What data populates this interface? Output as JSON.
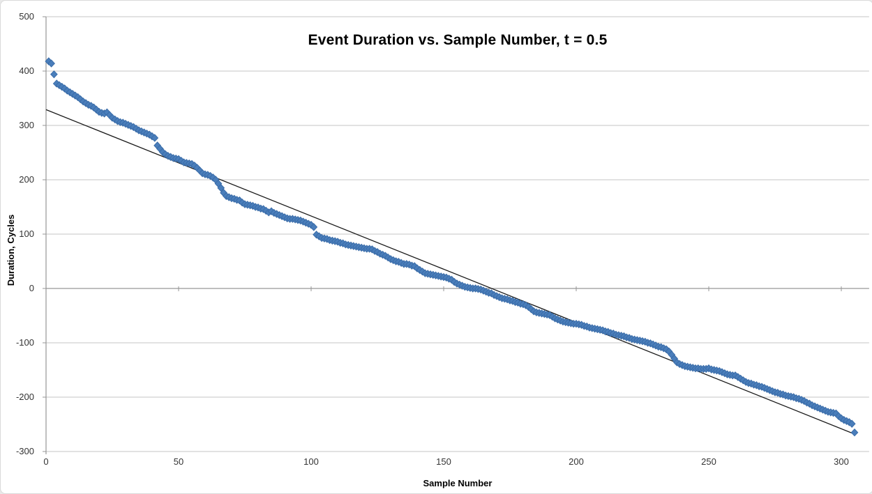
{
  "chart": {
    "title": "Event Duration vs. Sample Number, t = 0.5",
    "x_axis_label": "Sample Number",
    "y_axis_label": "Duration, Cycles"
  },
  "colors": {
    "background": "#ffffff",
    "border": "#d9d9d9",
    "gridline": "#c6c6c6",
    "axis": "#969696",
    "trendline": "#1a1a1a",
    "marker_fill": "#4a7ebb",
    "marker_stroke": "#3a6ca8",
    "text": "#333333"
  },
  "chart_data": {
    "type": "scatter",
    "title": "Event Duration vs. Sample Number, t = 0.5",
    "xlabel": "Sample Number",
    "ylabel": "Duration, Cycles",
    "xlim": [
      0,
      310.5
    ],
    "ylim": [
      -300,
      500
    ],
    "x_ticks": [
      0,
      50,
      100,
      150,
      200,
      250,
      300
    ],
    "y_ticks": [
      -300,
      -200,
      -100,
      0,
      100,
      200,
      300,
      400,
      500
    ],
    "grid": true,
    "legend_position": "none",
    "marker_shape": "diamond",
    "trendline": {
      "type": "linear",
      "x1": 0,
      "y1": 329,
      "x2": 304,
      "y2": -266
    },
    "points": [
      [
        1,
        418
      ],
      [
        2,
        414
      ],
      [
        3,
        394
      ],
      [
        4,
        377
      ],
      [
        5,
        374
      ],
      [
        6,
        371
      ],
      [
        7,
        368
      ],
      [
        8,
        364
      ],
      [
        9,
        361
      ],
      [
        10,
        358
      ],
      [
        11,
        355
      ],
      [
        12,
        352
      ],
      [
        13,
        348
      ],
      [
        14,
        344
      ],
      [
        15,
        341
      ],
      [
        16,
        338
      ],
      [
        17,
        336
      ],
      [
        18,
        333
      ],
      [
        19,
        329
      ],
      [
        20,
        325
      ],
      [
        21,
        323
      ],
      [
        22,
        322
      ],
      [
        23,
        324
      ],
      [
        24,
        319
      ],
      [
        25,
        314
      ],
      [
        26,
        311
      ],
      [
        27,
        308
      ],
      [
        28,
        306
      ],
      [
        29,
        305
      ],
      [
        30,
        303
      ],
      [
        31,
        301
      ],
      [
        32,
        299
      ],
      [
        33,
        297
      ],
      [
        34,
        294
      ],
      [
        35,
        291
      ],
      [
        36,
        289
      ],
      [
        37,
        287
      ],
      [
        38,
        285
      ],
      [
        39,
        283
      ],
      [
        40,
        280
      ],
      [
        41,
        277
      ],
      [
        42,
        263
      ],
      [
        43,
        257
      ],
      [
        44,
        251
      ],
      [
        45,
        247
      ],
      [
        46,
        244
      ],
      [
        47,
        242
      ],
      [
        48,
        240
      ],
      [
        49,
        239
      ],
      [
        50,
        238
      ],
      [
        51,
        235
      ],
      [
        52,
        232
      ],
      [
        53,
        231
      ],
      [
        54,
        230
      ],
      [
        55,
        229
      ],
      [
        56,
        226
      ],
      [
        57,
        222
      ],
      [
        58,
        217
      ],
      [
        59,
        212
      ],
      [
        60,
        210
      ],
      [
        61,
        209
      ],
      [
        62,
        207
      ],
      [
        63,
        204
      ],
      [
        64,
        200
      ],
      [
        65,
        193
      ],
      [
        66,
        185
      ],
      [
        67,
        176
      ],
      [
        68,
        170
      ],
      [
        69,
        168
      ],
      [
        70,
        166
      ],
      [
        71,
        165
      ],
      [
        72,
        163
      ],
      [
        73,
        162
      ],
      [
        74,
        158
      ],
      [
        75,
        155
      ],
      [
        76,
        154
      ],
      [
        77,
        153
      ],
      [
        78,
        152
      ],
      [
        79,
        150
      ],
      [
        80,
        149
      ],
      [
        81,
        147
      ],
      [
        82,
        146
      ],
      [
        83,
        143
      ],
      [
        84,
        140
      ],
      [
        85,
        142
      ],
      [
        86,
        139
      ],
      [
        87,
        137
      ],
      [
        88,
        135
      ],
      [
        89,
        133
      ],
      [
        90,
        131
      ],
      [
        91,
        129
      ],
      [
        92,
        128
      ],
      [
        93,
        128
      ],
      [
        94,
        127
      ],
      [
        95,
        126
      ],
      [
        96,
        125
      ],
      [
        97,
        123
      ],
      [
        98,
        121
      ],
      [
        99,
        119
      ],
      [
        100,
        117
      ],
      [
        101,
        113
      ],
      [
        102,
        99
      ],
      [
        103,
        96
      ],
      [
        104,
        93
      ],
      [
        105,
        92
      ],
      [
        106,
        91
      ],
      [
        107,
        89
      ],
      [
        108,
        88
      ],
      [
        109,
        87
      ],
      [
        110,
        86
      ],
      [
        111,
        84
      ],
      [
        112,
        83
      ],
      [
        113,
        81
      ],
      [
        114,
        80
      ],
      [
        115,
        79
      ],
      [
        116,
        78
      ],
      [
        117,
        77
      ],
      [
        118,
        76
      ],
      [
        119,
        75
      ],
      [
        120,
        74
      ],
      [
        121,
        73
      ],
      [
        122,
        73
      ],
      [
        123,
        72
      ],
      [
        124,
        69
      ],
      [
        125,
        67
      ],
      [
        126,
        64
      ],
      [
        127,
        62
      ],
      [
        128,
        60
      ],
      [
        129,
        57
      ],
      [
        130,
        54
      ],
      [
        131,
        52
      ],
      [
        132,
        50
      ],
      [
        133,
        49
      ],
      [
        134,
        47
      ],
      [
        135,
        45
      ],
      [
        136,
        45
      ],
      [
        137,
        44
      ],
      [
        138,
        42
      ],
      [
        139,
        41
      ],
      [
        140,
        37
      ],
      [
        141,
        34
      ],
      [
        142,
        31
      ],
      [
        143,
        28
      ],
      [
        144,
        27
      ],
      [
        145,
        26
      ],
      [
        146,
        25
      ],
      [
        147,
        24
      ],
      [
        148,
        23
      ],
      [
        149,
        22
      ],
      [
        150,
        21
      ],
      [
        151,
        20
      ],
      [
        152,
        18
      ],
      [
        153,
        16
      ],
      [
        154,
        12
      ],
      [
        155,
        9
      ],
      [
        156,
        7
      ],
      [
        157,
        5
      ],
      [
        158,
        3
      ],
      [
        159,
        2
      ],
      [
        160,
        1
      ],
      [
        161,
        0
      ],
      [
        162,
        0
      ],
      [
        163,
        -1
      ],
      [
        164,
        -2
      ],
      [
        165,
        -4
      ],
      [
        166,
        -6
      ],
      [
        167,
        -8
      ],
      [
        168,
        -9
      ],
      [
        169,
        -12
      ],
      [
        170,
        -14
      ],
      [
        171,
        -16
      ],
      [
        172,
        -18
      ],
      [
        173,
        -19
      ],
      [
        174,
        -20
      ],
      [
        175,
        -22
      ],
      [
        176,
        -23
      ],
      [
        177,
        -25
      ],
      [
        178,
        -26
      ],
      [
        179,
        -28
      ],
      [
        180,
        -29
      ],
      [
        181,
        -31
      ],
      [
        182,
        -34
      ],
      [
        183,
        -38
      ],
      [
        184,
        -42
      ],
      [
        185,
        -44
      ],
      [
        186,
        -45
      ],
      [
        187,
        -46
      ],
      [
        188,
        -47
      ],
      [
        189,
        -48
      ],
      [
        190,
        -49
      ],
      [
        191,
        -52
      ],
      [
        192,
        -55
      ],
      [
        193,
        -57
      ],
      [
        194,
        -59
      ],
      [
        195,
        -61
      ],
      [
        196,
        -62
      ],
      [
        197,
        -63
      ],
      [
        198,
        -64
      ],
      [
        199,
        -65
      ],
      [
        200,
        -65
      ],
      [
        201,
        -66
      ],
      [
        202,
        -67
      ],
      [
        203,
        -69
      ],
      [
        204,
        -70
      ],
      [
        205,
        -72
      ],
      [
        206,
        -73
      ],
      [
        207,
        -74
      ],
      [
        208,
        -75
      ],
      [
        209,
        -76
      ],
      [
        210,
        -77
      ],
      [
        211,
        -79
      ],
      [
        212,
        -80
      ],
      [
        213,
        -82
      ],
      [
        214,
        -83
      ],
      [
        215,
        -85
      ],
      [
        216,
        -86
      ],
      [
        217,
        -87
      ],
      [
        218,
        -88
      ],
      [
        219,
        -90
      ],
      [
        220,
        -91
      ],
      [
        221,
        -93
      ],
      [
        222,
        -94
      ],
      [
        223,
        -95
      ],
      [
        224,
        -96
      ],
      [
        225,
        -97
      ],
      [
        226,
        -98
      ],
      [
        227,
        -100
      ],
      [
        228,
        -101
      ],
      [
        229,
        -103
      ],
      [
        230,
        -105
      ],
      [
        231,
        -107
      ],
      [
        232,
        -108
      ],
      [
        233,
        -110
      ],
      [
        234,
        -112
      ],
      [
        235,
        -116
      ],
      [
        236,
        -122
      ],
      [
        237,
        -129
      ],
      [
        238,
        -136
      ],
      [
        239,
        -139
      ],
      [
        240,
        -141
      ],
      [
        241,
        -143
      ],
      [
        242,
        -144
      ],
      [
        243,
        -145
      ],
      [
        244,
        -146
      ],
      [
        245,
        -147
      ],
      [
        246,
        -147
      ],
      [
        247,
        -148
      ],
      [
        248,
        -148
      ],
      [
        249,
        -148
      ],
      [
        250,
        -147
      ],
      [
        251,
        -149
      ],
      [
        252,
        -150
      ],
      [
        253,
        -151
      ],
      [
        254,
        -152
      ],
      [
        255,
        -154
      ],
      [
        256,
        -156
      ],
      [
        257,
        -158
      ],
      [
        258,
        -159
      ],
      [
        259,
        -160
      ],
      [
        260,
        -160
      ],
      [
        261,
        -163
      ],
      [
        262,
        -166
      ],
      [
        263,
        -169
      ],
      [
        264,
        -172
      ],
      [
        265,
        -174
      ],
      [
        266,
        -175
      ],
      [
        267,
        -177
      ],
      [
        268,
        -178
      ],
      [
        269,
        -180
      ],
      [
        270,
        -181
      ],
      [
        271,
        -183
      ],
      [
        272,
        -185
      ],
      [
        273,
        -187
      ],
      [
        274,
        -189
      ],
      [
        275,
        -191
      ],
      [
        276,
        -192
      ],
      [
        277,
        -194
      ],
      [
        278,
        -195
      ],
      [
        279,
        -197
      ],
      [
        280,
        -198
      ],
      [
        281,
        -199
      ],
      [
        282,
        -200
      ],
      [
        283,
        -202
      ],
      [
        284,
        -203
      ],
      [
        285,
        -205
      ],
      [
        286,
        -207
      ],
      [
        287,
        -210
      ],
      [
        288,
        -212
      ],
      [
        289,
        -215
      ],
      [
        290,
        -217
      ],
      [
        291,
        -219
      ],
      [
        292,
        -221
      ],
      [
        293,
        -223
      ],
      [
        294,
        -225
      ],
      [
        295,
        -227
      ],
      [
        296,
        -228
      ],
      [
        297,
        -229
      ],
      [
        298,
        -230
      ],
      [
        299,
        -235
      ],
      [
        300,
        -239
      ],
      [
        301,
        -242
      ],
      [
        302,
        -244
      ],
      [
        303,
        -246
      ],
      [
        304,
        -249
      ],
      [
        305,
        -265
      ]
    ]
  }
}
